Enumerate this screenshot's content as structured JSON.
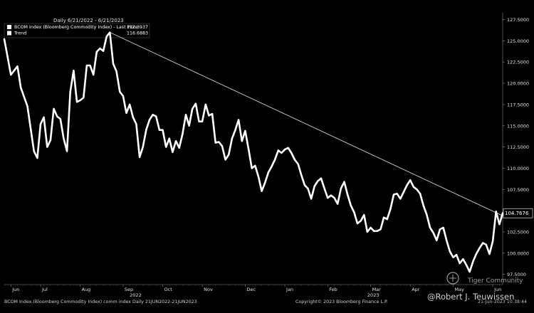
{
  "chart_data": {
    "type": "line",
    "header": "Daily 6/21/2022 - 6/21/2023",
    "legend": [
      {
        "label": "BCOM Index (Bloomberg Commodity Index) - Last Price",
        "value": "112.3937",
        "color": "#ffffff"
      },
      {
        "label": "Trend",
        "value": "116.6883",
        "color": "#ffffff"
      }
    ],
    "last_value_label": "104.7676",
    "y_ticks": [
      "127.5000",
      "125.0000",
      "122.5000",
      "120.0000",
      "117.5000",
      "115.0000",
      "112.5000",
      "110.0000",
      "107.5000",
      "105.0000",
      "102.5000",
      "100.0000",
      "97.5000"
    ],
    "ylim": [
      96.3,
      128.3
    ],
    "x_months": [
      "Jun",
      "Jul",
      "Aug",
      "Sep",
      "Oct",
      "Nov",
      "Dec",
      "Jan",
      "Feb",
      "Mar",
      "Apr",
      "May",
      "Jun"
    ],
    "x_years": [
      "2022",
      "2023"
    ],
    "series": [
      {
        "values": [
          [
            0,
            125.2
          ],
          [
            2,
            121.0
          ],
          [
            4,
            122.0
          ],
          [
            5,
            119.5
          ],
          [
            7,
            117.3
          ],
          [
            9,
            112.0
          ],
          [
            10,
            111.2
          ],
          [
            11,
            115.2
          ],
          [
            12,
            116.0
          ],
          [
            13,
            112.5
          ],
          [
            14,
            113.3
          ],
          [
            15,
            117.0
          ],
          [
            16,
            116.1
          ],
          [
            17,
            115.8
          ],
          [
            18,
            113.5
          ],
          [
            19,
            112.0
          ],
          [
            20,
            119.0
          ],
          [
            21,
            121.5
          ],
          [
            22,
            117.8
          ],
          [
            23,
            118.0
          ],
          [
            24,
            118.3
          ],
          [
            25,
            122.1
          ],
          [
            26,
            122.1
          ],
          [
            27,
            121.0
          ],
          [
            28,
            123.7
          ],
          [
            29,
            124.1
          ],
          [
            30,
            123.8
          ],
          [
            31,
            125.5
          ],
          [
            32,
            126.0
          ],
          [
            33,
            122.3
          ],
          [
            34,
            121.4
          ],
          [
            35,
            119.0
          ],
          [
            36,
            118.5
          ],
          [
            37,
            116.5
          ],
          [
            38,
            117.5
          ],
          [
            39,
            116.0
          ],
          [
            40,
            115.2
          ],
          [
            41,
            111.3
          ],
          [
            42,
            112.5
          ],
          [
            43,
            114.5
          ],
          [
            44,
            115.7
          ],
          [
            45,
            116.3
          ],
          [
            46,
            116.1
          ],
          [
            47,
            114.5
          ],
          [
            48,
            114.5
          ],
          [
            49,
            112.5
          ],
          [
            50,
            113.5
          ],
          [
            51,
            111.9
          ],
          [
            52,
            113.2
          ],
          [
            53,
            112.4
          ],
          [
            54,
            114.0
          ],
          [
            55,
            116.3
          ],
          [
            56,
            115.0
          ],
          [
            57,
            117.0
          ],
          [
            58,
            117.6
          ],
          [
            59,
            115.5
          ],
          [
            60,
            115.5
          ],
          [
            61,
            117.5
          ],
          [
            62,
            116.2
          ],
          [
            63,
            116.4
          ],
          [
            64,
            113.0
          ],
          [
            65,
            113.1
          ],
          [
            66,
            112.6
          ],
          [
            67,
            111.0
          ],
          [
            68,
            111.6
          ],
          [
            69,
            113.5
          ],
          [
            70,
            114.5
          ],
          [
            71,
            115.7
          ],
          [
            72,
            113.2
          ],
          [
            73,
            114.4
          ],
          [
            74,
            112.3
          ],
          [
            75,
            110.0
          ],
          [
            76,
            110.3
          ],
          [
            77,
            109.0
          ],
          [
            78,
            107.3
          ],
          [
            79,
            108.3
          ],
          [
            80,
            109.5
          ],
          [
            81,
            110.2
          ],
          [
            82,
            111.0
          ],
          [
            83,
            112.1
          ],
          [
            84,
            111.8
          ],
          [
            85,
            112.2
          ],
          [
            86,
            112.4
          ],
          [
            87,
            111.8
          ],
          [
            88,
            111.0
          ],
          [
            89,
            110.5
          ],
          [
            90,
            109.2
          ],
          [
            91,
            108.0
          ],
          [
            92,
            107.6
          ],
          [
            93,
            106.4
          ],
          [
            94,
            107.9
          ],
          [
            95,
            108.5
          ],
          [
            96,
            108.8
          ],
          [
            97,
            107.6
          ],
          [
            98,
            106.5
          ],
          [
            99,
            106.8
          ],
          [
            100,
            106.5
          ],
          [
            101,
            105.8
          ],
          [
            102,
            107.6
          ],
          [
            103,
            108.4
          ],
          [
            104,
            106.9
          ],
          [
            105,
            105.6
          ],
          [
            106,
            104.8
          ],
          [
            107,
            103.5
          ],
          [
            108,
            103.8
          ],
          [
            109,
            104.5
          ],
          [
            110,
            102.5
          ],
          [
            111,
            103.0
          ],
          [
            112,
            102.6
          ],
          [
            113,
            102.6
          ],
          [
            114,
            102.8
          ],
          [
            115,
            104.2
          ],
          [
            116,
            104.0
          ],
          [
            117,
            105.2
          ],
          [
            118,
            106.9
          ],
          [
            119,
            107.0
          ],
          [
            120,
            106.4
          ],
          [
            121,
            107.2
          ],
          [
            122,
            108.0
          ],
          [
            123,
            108.6
          ],
          [
            124,
            107.8
          ],
          [
            125,
            107.5
          ],
          [
            126,
            107.0
          ],
          [
            127,
            105.6
          ],
          [
            128,
            104.5
          ],
          [
            129,
            103.0
          ],
          [
            130,
            102.4
          ],
          [
            131,
            101.5
          ],
          [
            132,
            102.8
          ],
          [
            133,
            103.0
          ],
          [
            134,
            101.5
          ],
          [
            135,
            100.2
          ],
          [
            136,
            99.5
          ],
          [
            137,
            99.8
          ],
          [
            138,
            98.8
          ],
          [
            139,
            99.3
          ],
          [
            140,
            98.6
          ],
          [
            141,
            97.8
          ],
          [
            142,
            99.0
          ],
          [
            143,
            99.9
          ],
          [
            144,
            100.6
          ],
          [
            145,
            101.2
          ],
          [
            146,
            101.0
          ],
          [
            147,
            99.9
          ],
          [
            148,
            101.4
          ],
          [
            149,
            104.9
          ],
          [
            150,
            103.4
          ],
          [
            151,
            104.7
          ]
        ]
      },
      {
        "name": "Trend",
        "values": [
          [
            32,
            126.0
          ],
          [
            151,
            104.4
          ]
        ]
      }
    ]
  },
  "footer": {
    "left": "BCOM Index (Bloomberg Commodity Index) comm index  Daily 21JUN2022-21JUN2023",
    "center": "Copyright© 2023 Bloomberg Finance L.P.",
    "right": "21-Jun-2023 10:38:44"
  },
  "watermark": {
    "brand": "Tiger Community",
    "handle": "@Robert J. Teuwissen"
  }
}
